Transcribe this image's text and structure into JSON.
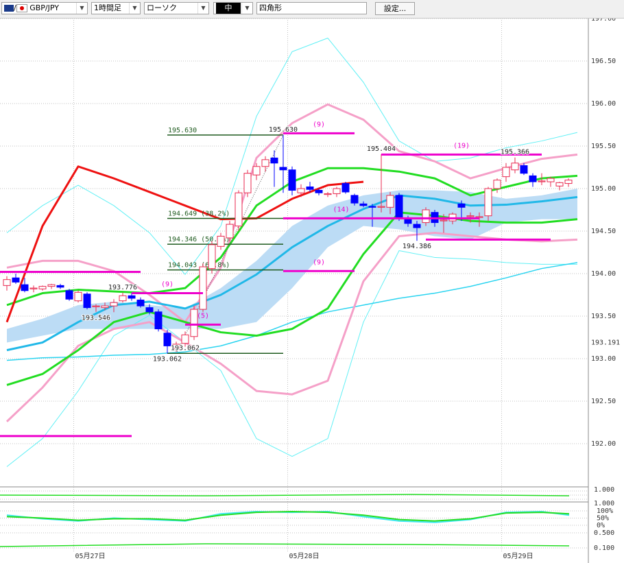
{
  "toolbar": {
    "symbol": "GBP/JPY",
    "timeframe": "1時間足",
    "chart_style": "ローソク",
    "size": "中",
    "drawing_tool": "四角形",
    "settings": "設定..."
  },
  "chart_data": {
    "type": "candlestick",
    "ylim": [
      191.5,
      197.0
    ],
    "yticks": [
      {
        "value": 197,
        "label": "197.00"
      },
      {
        "value": 196.5,
        "label": "196.50"
      },
      {
        "value": 196,
        "label": "196.00"
      },
      {
        "value": 195.5,
        "label": "195.50"
      },
      {
        "value": 195,
        "label": "195.00"
      },
      {
        "value": 194.5,
        "label": "194.50"
      },
      {
        "value": 194,
        "label": "194.00"
      },
      {
        "value": 193.5,
        "label": "193.50"
      },
      {
        "value": 193,
        "label": "193.00"
      },
      {
        "value": 192.5,
        "label": "192.50"
      },
      {
        "value": 192,
        "label": "192.00"
      }
    ],
    "current_price": 193.191,
    "xticks": [
      {
        "value": 7.5,
        "label": "05月27日"
      },
      {
        "value": 31.5,
        "label": "05月28日"
      },
      {
        "value": 55.5,
        "label": "05月29日"
      }
    ],
    "up_color": "#e8294f",
    "down_color": "#0000ff",
    "grid": true,
    "candles": [
      [
        193.86,
        193.97,
        193.8,
        193.93
      ],
      [
        193.95,
        194.0,
        193.88,
        193.9
      ],
      [
        193.87,
        193.95,
        193.78,
        193.8
      ],
      [
        193.82,
        193.86,
        193.78,
        193.83
      ],
      [
        193.82,
        193.86,
        193.8,
        193.85
      ],
      [
        193.85,
        193.88,
        193.82,
        193.87
      ],
      [
        193.86,
        193.88,
        193.82,
        193.84
      ],
      [
        193.8,
        193.82,
        193.68,
        193.7
      ],
      [
        193.68,
        193.8,
        193.66,
        193.78
      ],
      [
        193.76,
        193.78,
        193.58,
        193.6
      ],
      [
        193.61,
        193.64,
        193.55,
        193.62
      ],
      [
        193.6,
        193.66,
        193.57,
        193.62
      ],
      [
        193.62,
        193.7,
        193.546,
        193.66
      ],
      [
        193.68,
        193.776,
        193.66,
        193.74
      ],
      [
        193.74,
        193.77,
        193.68,
        193.71
      ],
      [
        193.69,
        193.72,
        193.6,
        193.62
      ],
      [
        193.6,
        193.64,
        193.52,
        193.55
      ],
      [
        193.55,
        193.58,
        193.32,
        193.35
      ],
      [
        193.3,
        193.34,
        193.062,
        193.15
      ],
      [
        193.12,
        193.2,
        193.08,
        193.17
      ],
      [
        193.18,
        193.32,
        193.14,
        193.28
      ],
      [
        193.26,
        193.62,
        193.22,
        193.58
      ],
      [
        193.58,
        194.12,
        193.55,
        194.08
      ],
      [
        194.06,
        194.38,
        194.0,
        194.34
      ],
      [
        194.32,
        194.48,
        194.28,
        194.44
      ],
      [
        194.42,
        194.62,
        194.38,
        194.58
      ],
      [
        194.56,
        194.98,
        194.5,
        194.95
      ],
      [
        194.95,
        195.22,
        194.9,
        195.18
      ],
      [
        195.16,
        195.3,
        195.1,
        195.26
      ],
      [
        195.26,
        195.38,
        195.2,
        195.34
      ],
      [
        195.36,
        195.45,
        195.02,
        195.3
      ],
      [
        195.25,
        195.63,
        194.95,
        195.22
      ],
      [
        195.22,
        195.26,
        194.92,
        194.98
      ],
      [
        194.95,
        195.05,
        194.9,
        195.0
      ],
      [
        195.02,
        195.08,
        194.96,
        194.99
      ],
      [
        194.98,
        195.0,
        194.92,
        194.95
      ],
      [
        194.93,
        194.96,
        194.9,
        194.94
      ],
      [
        194.94,
        195.02,
        194.9,
        195.0
      ],
      [
        195.06,
        195.08,
        194.94,
        194.96
      ],
      [
        194.92,
        194.94,
        194.8,
        194.83
      ],
      [
        194.82,
        194.85,
        194.78,
        194.8
      ],
      [
        194.79,
        194.82,
        194.55,
        194.78
      ],
      [
        194.78,
        195.404,
        194.72,
        194.79
      ],
      [
        194.78,
        194.96,
        194.7,
        194.92
      ],
      [
        194.92,
        194.95,
        194.62,
        194.66
      ],
      [
        194.64,
        194.68,
        194.55,
        194.59
      ],
      [
        194.58,
        194.62,
        194.386,
        194.54
      ],
      [
        194.6,
        194.78,
        194.56,
        194.75
      ],
      [
        194.72,
        194.75,
        194.55,
        194.6
      ],
      [
        194.62,
        194.7,
        194.48,
        194.63
      ],
      [
        194.62,
        194.72,
        194.58,
        194.7
      ],
      [
        194.82,
        194.86,
        194.62,
        194.78
      ],
      [
        194.67,
        194.72,
        194.6,
        194.68
      ],
      [
        194.66,
        194.72,
        194.55,
        194.67
      ],
      [
        194.68,
        195.02,
        194.62,
        195.0
      ],
      [
        195.0,
        195.12,
        194.95,
        195.1
      ],
      [
        195.14,
        195.3,
        195.08,
        195.25
      ],
      [
        195.22,
        195.366,
        195.18,
        195.3
      ],
      [
        195.27,
        195.3,
        195.16,
        195.18
      ],
      [
        195.15,
        195.18,
        195.02,
        195.08
      ],
      [
        195.08,
        195.18,
        195.04,
        195.09
      ],
      [
        195.08,
        195.14,
        195.02,
        195.12
      ],
      [
        195.03,
        195.08,
        194.98,
        195.07
      ],
      [
        195.06,
        195.12,
        195.02,
        195.1
      ]
    ],
    "overlay_x": [
      0,
      4,
      8,
      12,
      16,
      20,
      24,
      28,
      32,
      36,
      40,
      44,
      48,
      52,
      56,
      60,
      64
    ],
    "cloud": {
      "color": "#bcdcf5",
      "upper": [
        193.35,
        193.47,
        193.63,
        193.67,
        193.63,
        193.59,
        193.83,
        194.15,
        194.56,
        194.8,
        194.92,
        194.98,
        194.98,
        194.96,
        194.88,
        194.92,
        195.0
      ],
      "lower": [
        193.19,
        193.27,
        193.35,
        193.35,
        193.35,
        193.35,
        193.35,
        193.43,
        193.83,
        194.31,
        194.56,
        194.52,
        194.44,
        194.4,
        194.6,
        194.64,
        194.64
      ]
    },
    "overlays": [
      {
        "color": "#5ff0f5",
        "width": 1,
        "values": [
          194.48,
          194.8,
          195.04,
          194.8,
          194.48,
          193.99,
          194.56,
          195.85,
          196.61,
          196.77,
          196.25,
          195.56,
          195.32,
          195.36,
          195.48,
          195.56,
          195.66
        ]
      },
      {
        "color": "#5ff0f5",
        "width": 1,
        "values": [
          191.73,
          192.06,
          192.62,
          193.27,
          193.51,
          193.19,
          192.86,
          192.06,
          191.85,
          192.06,
          193.43,
          194.27,
          194.19,
          194.17,
          194.13,
          194.11,
          194.11
        ]
      },
      {
        "color": "#2ad4f0",
        "width": 1.5,
        "values": [
          192.98,
          193.01,
          193.02,
          193.04,
          193.05,
          193.08,
          193.15,
          193.27,
          193.43,
          193.55,
          193.63,
          193.71,
          193.77,
          193.85,
          193.95,
          194.06,
          194.13
        ]
      },
      {
        "color": "#f5a0c8",
        "width": 3,
        "values": [
          194.07,
          194.15,
          194.15,
          194.03,
          193.75,
          193.43,
          194.07,
          195.36,
          195.77,
          195.99,
          195.81,
          195.44,
          195.32,
          195.12,
          195.24,
          195.35,
          195.4
        ]
      },
      {
        "color": "#f5a0c8",
        "width": 3,
        "values": [
          192.26,
          192.66,
          193.15,
          193.35,
          193.43,
          193.19,
          192.94,
          192.62,
          192.58,
          192.74,
          193.91,
          194.44,
          194.48,
          194.44,
          194.4,
          194.38,
          194.4
        ]
      },
      {
        "color": "#22dd22",
        "width": 3,
        "values": [
          193.63,
          193.77,
          193.81,
          193.79,
          193.77,
          193.83,
          194.19,
          194.8,
          195.08,
          195.24,
          195.24,
          195.2,
          195.12,
          194.92,
          195.02,
          195.12,
          195.15
        ]
      },
      {
        "color": "#22dd22",
        "width": 3,
        "values": [
          192.69,
          192.82,
          193.1,
          193.43,
          193.55,
          193.43,
          193.31,
          193.27,
          193.35,
          193.59,
          194.23,
          194.72,
          194.68,
          194.62,
          194.6,
          194.6,
          194.64
        ]
      },
      {
        "color": "#20b8e8",
        "width": 3,
        "values": [
          193.1,
          193.19,
          193.43,
          193.63,
          193.67,
          193.59,
          193.75,
          193.99,
          194.31,
          194.56,
          194.76,
          194.92,
          194.88,
          194.8,
          194.81,
          194.85,
          194.9
        ]
      },
      {
        "color": "#ee1111",
        "width": 3,
        "values": [
          193.43,
          194.56,
          195.26,
          195.12,
          194.96,
          194.8,
          194.64,
          194.65,
          194.88,
          195.04,
          195.08,
          null,
          null,
          null,
          null,
          null,
          null
        ]
      }
    ],
    "levels_color": "#ee00cc",
    "levels": [
      {
        "value": 194.02,
        "from": -1,
        "to": 15
      },
      {
        "value": 192.09,
        "from": -1,
        "to": 14
      },
      {
        "value": 193.77,
        "from": 14,
        "to": 22,
        "label": "(9)"
      },
      {
        "value": 193.4,
        "from": 20,
        "to": 24,
        "label": "(5)"
      },
      {
        "value": 195.65,
        "from": 31,
        "to": 39,
        "label": "(9)"
      },
      {
        "value": 194.65,
        "from": 31,
        "to": 53,
        "label": "(14)",
        "label_at": 37.5
      },
      {
        "value": 194.03,
        "from": 31,
        "to": 39,
        "label": "(9)"
      },
      {
        "value": 195.4,
        "from": 42,
        "to": 60,
        "label": "(19)"
      },
      {
        "value": 194.4,
        "from": 47,
        "to": 61
      }
    ],
    "fib_color": "#1e5a1e",
    "fib_range": [
      18,
      31
    ],
    "fibonacci": [
      {
        "value": 195.63,
        "label": "195.630"
      },
      {
        "value": 194.649,
        "label": "194.649 (38.2%)"
      },
      {
        "value": 194.346,
        "label": "194.346 (50.0%)"
      },
      {
        "value": 194.043,
        "label": "194.043 (61.8%)"
      },
      {
        "value": 193.062
      }
    ],
    "price_labels": [
      {
        "value": 195.63,
        "label": "195.630",
        "at": 31,
        "pos": "above"
      },
      {
        "value": 195.404,
        "label": "195.404",
        "at": 42,
        "pos": "above"
      },
      {
        "value": 195.366,
        "label": "195.366",
        "at": 57,
        "pos": "above"
      },
      {
        "value": 194.386,
        "label": "194.386",
        "at": 46,
        "pos": "below"
      },
      {
        "value": 193.776,
        "label": "193.776",
        "at": 13,
        "pos": "above"
      },
      {
        "value": 193.546,
        "label": "193.546",
        "at": 10,
        "pos": "below"
      },
      {
        "value": 193.062,
        "label": "193.062",
        "at": 20,
        "pos": "above"
      },
      {
        "value": 193.062,
        "label": "193.062",
        "at": 18,
        "pos": "below"
      }
    ]
  },
  "oscillator": {
    "upper_label": "1.000",
    "labels_top": "1.000",
    "ylim": [
      0,
      100
    ],
    "yticks": [
      {
        "value": 100,
        "label": "100%"
      },
      {
        "value": 50,
        "label": "50%"
      },
      {
        "value": 0,
        "label": "0%"
      }
    ],
    "labels_bottom": [
      "0.500",
      "0.100"
    ],
    "series": [
      {
        "color": "#3ee8f0",
        "values": [
          70,
          45,
          30,
          50,
          40,
          30,
          80,
          95,
          90,
          95,
          60,
          30,
          20,
          40,
          90,
          95,
          70
        ]
      },
      {
        "color": "#22dd22",
        "values": [
          60,
          50,
          35,
          45,
          45,
          35,
          70,
          90,
          95,
          90,
          70,
          40,
          30,
          45,
          85,
          90,
          80
        ]
      }
    ]
  }
}
